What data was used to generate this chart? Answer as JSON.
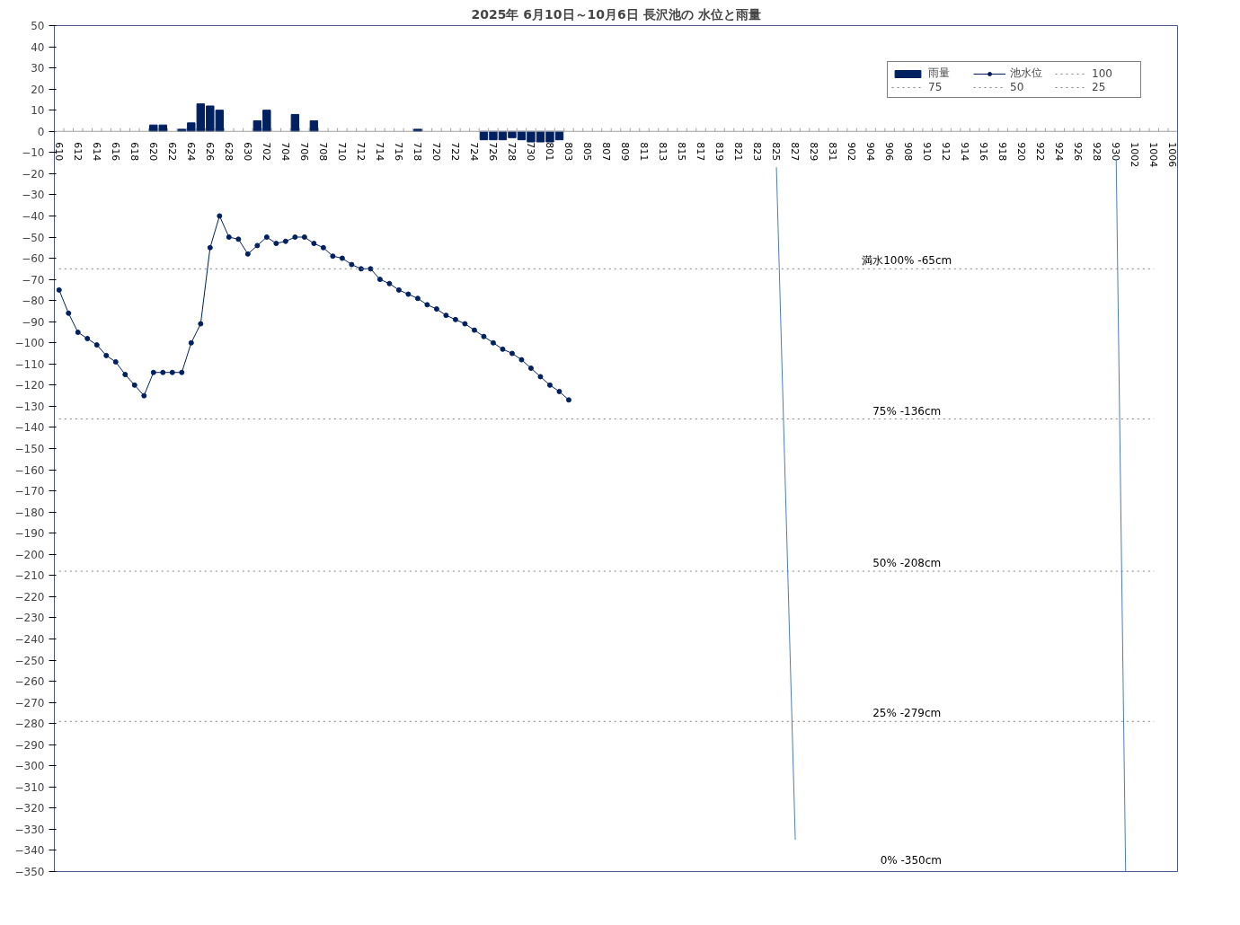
{
  "chart_data": {
    "type": "line",
    "title": "2025年 6月10日～10月6日 長沢池の 水位と雨量",
    "categories": [
      "610",
      null,
      "612",
      null,
      "614",
      null,
      "616",
      null,
      "618",
      null,
      "620",
      null,
      "622",
      null,
      "624",
      null,
      "626",
      null,
      "628",
      null,
      "630",
      null,
      "702",
      null,
      "704",
      null,
      "706",
      null,
      "708",
      null,
      "710",
      null,
      "712",
      null,
      "714",
      null,
      "716",
      null,
      "718",
      null,
      "720",
      null,
      "722",
      null,
      "724",
      null,
      "726",
      null,
      "728",
      null,
      "730",
      null,
      "801",
      null,
      "803",
      null,
      "805",
      null,
      "807",
      null,
      "809",
      null,
      "811",
      null,
      "813",
      null,
      "815",
      null,
      "817",
      null,
      "819",
      null,
      "821",
      null,
      "823",
      null,
      "825",
      null,
      "827",
      null,
      "829",
      null,
      "831",
      null,
      "902",
      null,
      "904",
      null,
      "906",
      null,
      "908",
      null,
      "910",
      null,
      "912",
      null,
      "914",
      null,
      "916",
      null,
      "918",
      null,
      "920",
      null,
      "922",
      null,
      "924",
      null,
      "926",
      null,
      "928",
      null,
      "930",
      null,
      "1002",
      null,
      "1004",
      null,
      "1006"
    ],
    "series": [
      {
        "name": "雨量",
        "type": "bar",
        "color": "#002060",
        "values": [
          null,
          null,
          null,
          null,
          null,
          null,
          null,
          null,
          null,
          null,
          3,
          3,
          null,
          1,
          4,
          13,
          12,
          10,
          null,
          null,
          null,
          5,
          10,
          null,
          null,
          8,
          null,
          5,
          null,
          null,
          null,
          null,
          null,
          null,
          null,
          null,
          null,
          null,
          1,
          null,
          null,
          null,
          null,
          null,
          null,
          -4,
          -4,
          -4,
          -3,
          -4,
          -5,
          -5,
          -5,
          -4,
          null,
          null,
          null,
          null,
          null,
          null,
          null,
          null,
          null,
          null,
          null,
          null,
          null,
          null,
          null,
          null,
          null,
          null,
          null,
          null,
          null,
          null,
          null,
          null,
          null,
          null,
          null,
          null,
          null,
          null,
          null,
          null,
          null,
          null,
          null,
          null,
          null,
          null,
          null,
          null,
          null,
          null,
          null,
          null,
          null,
          null,
          null,
          null,
          null,
          null,
          null,
          null,
          null,
          null,
          null,
          null,
          null,
          null,
          null,
          null,
          null,
          null,
          null,
          null,
          null
        ]
      },
      {
        "name": "池水位",
        "color": "#002060",
        "marker": "circle",
        "line_style": "solid",
        "values": [
          -75,
          -86,
          -95,
          -98,
          -101,
          -106,
          -109,
          -115,
          -120,
          -125,
          -114,
          -114,
          -114,
          -114,
          -100,
          -91,
          -55,
          -40,
          -50,
          -51,
          -58,
          -54,
          -50,
          -53,
          -52,
          -50,
          -50,
          -53,
          -55,
          -59,
          -60,
          -63,
          -65,
          -65,
          -70,
          -72,
          -75,
          -77,
          -79,
          -82,
          -84,
          -87,
          -89,
          -91,
          -94,
          -97,
          -100,
          -103,
          -105,
          -108,
          -112,
          -116,
          -120,
          -123,
          -127,
          null,
          null,
          null,
          null,
          null,
          null,
          null,
          null,
          null,
          null,
          null,
          null,
          null,
          null,
          null,
          null,
          null,
          null,
          null,
          null,
          null,
          null,
          null,
          null,
          null,
          null,
          null,
          null,
          null,
          null,
          null,
          null,
          null,
          null,
          null,
          null,
          null,
          null,
          null,
          null,
          null,
          null,
          null,
          null,
          null,
          null,
          null,
          null,
          null,
          null,
          null,
          null,
          null,
          null,
          null,
          null,
          null,
          null,
          null,
          null,
          null,
          null,
          null,
          null
        ]
      },
      {
        "name": "100",
        "type": "line",
        "color": "#808080",
        "line_style": "dotted",
        "marker": "none",
        "values": [
          -65,
          -65,
          -65,
          -65,
          -65,
          -65,
          -65,
          -65,
          -65,
          -65,
          -65,
          -65,
          -65,
          -65,
          -65,
          -65,
          -65,
          -65,
          -65,
          -65,
          -65,
          -65,
          -65,
          -65,
          -65,
          -65,
          -65,
          -65,
          -65,
          -65,
          -65,
          -65,
          -65,
          -65,
          -65,
          -65,
          -65,
          -65,
          -65,
          -65,
          -65,
          -65,
          -65,
          -65,
          -65,
          -65,
          -65,
          -65,
          -65,
          -65,
          -65,
          -65,
          -65,
          -65,
          -65,
          -65,
          -65,
          -65,
          -65,
          -65,
          -65,
          -65,
          -65,
          -65,
          -65,
          -65,
          -65,
          -65,
          -65,
          -65,
          -65,
          -65,
          -65,
          -65,
          -65,
          -65,
          -65,
          -65,
          -65,
          -65,
          -65,
          -65,
          -65,
          -65,
          -65,
          -65,
          -65,
          -65,
          -65,
          -65,
          -65,
          -65,
          -65,
          -65,
          -65,
          -65,
          -65,
          -65,
          -65,
          -65,
          -65,
          -65,
          -65,
          -65,
          -65,
          -65,
          -65,
          -65,
          -65,
          -65,
          -65,
          -65,
          -65,
          -65,
          -65,
          -65,
          -65,
          null,
          null
        ]
      },
      {
        "name": "75",
        "type": "line",
        "color": "#808080",
        "line_style": "dotted",
        "marker": "none",
        "values": [
          -136,
          -136,
          -136,
          -136,
          -136,
          -136,
          -136,
          -136,
          -136,
          -136,
          -136,
          -136,
          -136,
          -136,
          -136,
          -136,
          -136,
          -136,
          -136,
          -136,
          -136,
          -136,
          -136,
          -136,
          -136,
          -136,
          -136,
          -136,
          -136,
          -136,
          -136,
          -136,
          -136,
          -136,
          -136,
          -136,
          -136,
          -136,
          -136,
          -136,
          -136,
          -136,
          -136,
          -136,
          -136,
          -136,
          -136,
          -136,
          -136,
          -136,
          -136,
          -136,
          -136,
          -136,
          -136,
          -136,
          -136,
          -136,
          -136,
          -136,
          -136,
          -136,
          -136,
          -136,
          -136,
          -136,
          -136,
          -136,
          -136,
          -136,
          -136,
          -136,
          -136,
          -136,
          -136,
          -136,
          -136,
          -136,
          -136,
          -136,
          -136,
          -136,
          -136,
          -136,
          -136,
          -136,
          -136,
          -136,
          -136,
          -136,
          -136,
          -136,
          -136,
          -136,
          -136,
          -136,
          -136,
          -136,
          -136,
          -136,
          -136,
          -136,
          -136,
          -136,
          -136,
          -136,
          -136,
          -136,
          -136,
          -136,
          -136,
          -136,
          -136,
          -136,
          -136,
          -136,
          -136,
          null,
          null
        ]
      },
      {
        "name": "50",
        "type": "line",
        "color": "#808080",
        "line_style": "dotted",
        "marker": "none",
        "values": [
          -208,
          -208,
          -208,
          -208,
          -208,
          -208,
          -208,
          -208,
          -208,
          -208,
          -208,
          -208,
          -208,
          -208,
          -208,
          -208,
          -208,
          -208,
          -208,
          -208,
          -208,
          -208,
          -208,
          -208,
          -208,
          -208,
          -208,
          -208,
          -208,
          -208,
          -208,
          -208,
          -208,
          -208,
          -208,
          -208,
          -208,
          -208,
          -208,
          -208,
          -208,
          -208,
          -208,
          -208,
          -208,
          -208,
          -208,
          -208,
          -208,
          -208,
          -208,
          -208,
          -208,
          -208,
          -208,
          -208,
          -208,
          -208,
          -208,
          -208,
          -208,
          -208,
          -208,
          -208,
          -208,
          -208,
          -208,
          -208,
          -208,
          -208,
          -208,
          -208,
          -208,
          -208,
          -208,
          -208,
          -208,
          -208,
          -208,
          -208,
          -208,
          -208,
          -208,
          -208,
          -208,
          -208,
          -208,
          -208,
          -208,
          -208,
          -208,
          -208,
          -208,
          -208,
          -208,
          -208,
          -208,
          -208,
          -208,
          -208,
          -208,
          -208,
          -208,
          -208,
          -208,
          -208,
          -208,
          -208,
          -208,
          -208,
          -208,
          -208,
          -208,
          -208,
          -208,
          -208,
          -208,
          null,
          null
        ]
      },
      {
        "name": "25",
        "type": "line",
        "color": "#808080",
        "line_style": "dotted",
        "marker": "none",
        "values": [
          -279,
          -279,
          -279,
          -279,
          -279,
          -279,
          -279,
          -279,
          -279,
          -279,
          -279,
          -279,
          -279,
          -279,
          -279,
          -279,
          -279,
          -279,
          -279,
          -279,
          -279,
          -279,
          -279,
          -279,
          -279,
          -279,
          -279,
          -279,
          -279,
          -279,
          -279,
          -279,
          -279,
          -279,
          -279,
          -279,
          -279,
          -279,
          -279,
          -279,
          -279,
          -279,
          -279,
          -279,
          -279,
          -279,
          -279,
          -279,
          -279,
          -279,
          -279,
          -279,
          -279,
          -279,
          -279,
          -279,
          -279,
          -279,
          -279,
          -279,
          -279,
          -279,
          -279,
          -279,
          -279,
          -279,
          -279,
          -279,
          -279,
          -279,
          -279,
          -279,
          -279,
          -279,
          -279,
          -279,
          -279,
          -279,
          -279,
          -279,
          -279,
          -279,
          -279,
          -279,
          -279,
          -279,
          -279,
          -279,
          -279,
          -279,
          -279,
          -279,
          -279,
          -279,
          -279,
          -279,
          -279,
          -279,
          -279,
          -279,
          -279,
          -279,
          -279,
          -279,
          -279,
          -279,
          -279,
          -279,
          -279,
          -279,
          -279,
          -279,
          -279,
          -279,
          -279,
          -279,
          -279,
          null,
          null
        ]
      },
      {
        "color": "#4a7ebb",
        "marker": "none",
        "line_style": "solid",
        "x": [
          "825",
          "827"
        ],
        "values": [
          -17,
          -335
        ]
      },
      {
        "color": "#4a7ebb",
        "marker": "none",
        "line_style": "solid",
        "values": [
          null,
          null,
          null,
          null,
          null,
          null,
          null,
          null,
          null,
          null,
          null,
          null,
          null,
          null,
          null,
          null,
          null,
          null,
          null,
          null,
          null,
          null,
          null,
          null,
          null,
          null,
          null,
          null,
          null,
          null,
          null,
          null,
          null,
          null,
          null,
          null,
          null,
          null,
          null,
          null,
          null,
          null,
          null,
          null,
          null,
          null,
          null,
          null,
          null,
          null,
          null,
          null,
          null,
          null,
          null,
          null,
          null,
          null,
          null,
          null,
          null,
          null,
          null,
          null,
          null,
          null,
          null,
          null,
          null,
          null,
          null,
          null,
          null,
          null,
          null,
          null,
          null,
          null,
          null,
          null,
          null,
          null,
          null,
          null,
          null,
          null,
          null,
          null,
          null,
          null,
          null,
          null,
          null,
          null,
          null,
          null,
          null,
          null,
          null,
          null,
          null,
          null,
          null,
          null,
          null,
          null,
          null,
          null,
          null,
          null,
          null,
          null,
          -13,
          -350,
          null,
          null,
          null,
          null,
          null
        ]
      }
    ],
    "ylim": [
      -350,
      50
    ],
    "yticks": [
      50,
      40,
      30,
      20,
      10,
      0,
      -10,
      -20,
      -30,
      -40,
      -50,
      -60,
      -70,
      -80,
      -90,
      -100,
      -110,
      -120,
      -130,
      -140,
      -150,
      -160,
      -170,
      -180,
      -190,
      -200,
      -210,
      -220,
      -230,
      -240,
      -250,
      -260,
      -270,
      -280,
      -290,
      -300,
      -310,
      -320,
      -330,
      -340,
      -350
    ],
    "annotations": [
      {
        "text": "満水100%  -65cm",
        "x": "908",
        "y": -65
      },
      {
        "text": "75%  -136cm",
        "x": "908",
        "y": -136
      },
      {
        "text": "50%  -208cm",
        "x": "908",
        "y": -208
      },
      {
        "text": "25%  -279cm",
        "x": "908",
        "y": -279
      },
      "0%  -350cm"
    ],
    "grid": false,
    "legend": "top right"
  }
}
